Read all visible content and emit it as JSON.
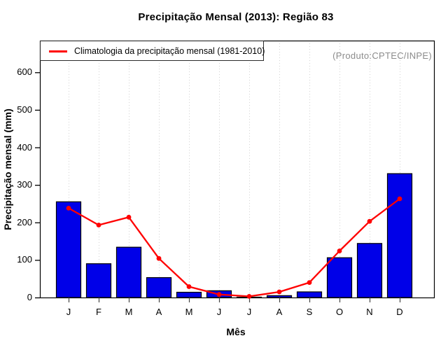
{
  "title": "Precipitação Mensal (2013): Região 83",
  "annotation": {
    "text": "(Produto:CPTEC/INPE)",
    "color": "#8c8c8c"
  },
  "legend": {
    "label": "Climatologia da precipitação mensal (1981-2010)"
  },
  "colors": {
    "bar_fill": "#0000e8",
    "bar_border": "#000000",
    "climatology_line": "#ff0000",
    "grid": "#d2d2d2",
    "axis": "#000000"
  },
  "chart_data": {
    "type": "bar",
    "title": "Precipitação Mensal (2013): Região 83",
    "categories": [
      "J",
      "F",
      "M",
      "A",
      "M",
      "J",
      "J",
      "A",
      "S",
      "O",
      "N",
      "D"
    ],
    "series": [
      {
        "name": "Precipitação Mensal (2013)",
        "type": "bar",
        "color": "#0000e8",
        "values": [
          255,
          90,
          134,
          53,
          14,
          18,
          1,
          5,
          15,
          106,
          144,
          330
        ]
      },
      {
        "name": "Climatologia da precipitação mensal (1981-2010)",
        "type": "line",
        "color": "#ff0000",
        "values": [
          238,
          193,
          214,
          104,
          29,
          8,
          3,
          15,
          40,
          124,
          203,
          263
        ]
      }
    ],
    "xlabel": "Mês",
    "ylabel": "Precipitação mensal (mm)",
    "ylim": [
      0,
      600
    ],
    "y_ticks": [
      0,
      100,
      200,
      300,
      400,
      500,
      600
    ],
    "grid": "vertical-dotted",
    "legend_position": "top-left"
  }
}
